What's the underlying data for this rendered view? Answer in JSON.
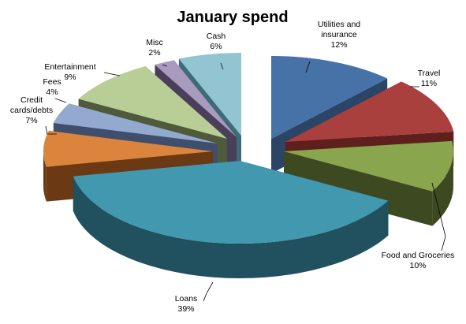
{
  "chart_data": {
    "type": "pie",
    "style": "3d-exploded",
    "title": "January spend",
    "slices": [
      {
        "name": "Utilities and insurance",
        "value": 12,
        "label_lines": [
          "Utilities and",
          "insurance",
          "12%"
        ],
        "color": "#4672A8",
        "side": "#2B4566"
      },
      {
        "name": "Travel",
        "value": 11,
        "label_lines": [
          "Travel",
          "11%"
        ],
        "color": "#A9403D",
        "side": "#5E1F1D"
      },
      {
        "name": "Food and Groceries",
        "value": 10,
        "label_lines": [
          "Food and Groceries",
          "10%"
        ],
        "color": "#89A54E",
        "side": "#3D4A21"
      },
      {
        "name": "Loans",
        "value": 39,
        "label_lines": [
          "Loans",
          "39%"
        ],
        "color": "#4198AF",
        "side": "#21505E"
      },
      {
        "name": "Credit cards/debts",
        "value": 7,
        "label_lines": [
          "Credit",
          "cards/debts",
          "7%"
        ],
        "color": "#DB843D",
        "side": "#6B3A14"
      },
      {
        "name": "Fees",
        "value": 4,
        "label_lines": [
          "Fees",
          "4%"
        ],
        "color": "#93A9CF",
        "side": "#3E4E6C"
      },
      {
        "name": "Entertainment",
        "value": 9,
        "label_lines": [
          "Entertainment",
          "9%"
        ],
        "color": "#B9CD96",
        "side": "#4E5A3A"
      },
      {
        "name": "Misc",
        "value": 2,
        "label_lines": [
          "Misc",
          "2%"
        ],
        "color": "#A99BBD",
        "side": "#4A3F5A"
      },
      {
        "name": "Cash",
        "value": 6,
        "label_lines": [
          "Cash",
          "6%"
        ],
        "color": "#92C4D2",
        "side": "#3F6A77"
      }
    ],
    "legend": "none"
  }
}
